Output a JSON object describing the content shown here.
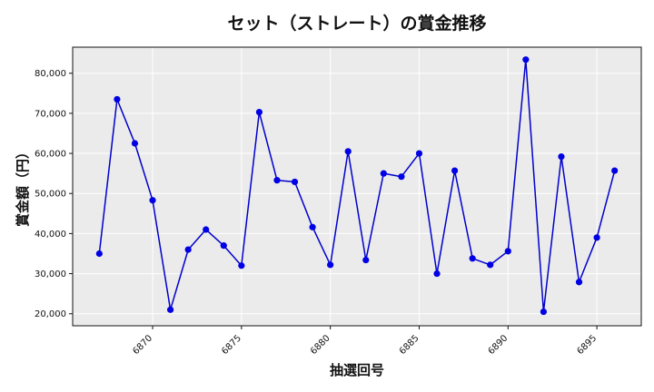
{
  "chart_data": {
    "type": "line",
    "title": "セット（ストレート）の賞金推移",
    "xlabel": "抽選回号",
    "ylabel": "賞金額（円）",
    "xlim": [
      6865.5,
      6897.5
    ],
    "ylim": [
      17000,
      86500
    ],
    "x_ticks": [
      6870,
      6875,
      6880,
      6885,
      6890,
      6895
    ],
    "y_ticks": [
      20000,
      30000,
      40000,
      50000,
      60000,
      70000,
      80000
    ],
    "y_tick_labels": [
      "20,000",
      "30,000",
      "40,000",
      "50,000",
      "60,000",
      "70,000",
      "80,000"
    ],
    "grid": true,
    "colors": {
      "line": "#0000cc",
      "marker": "#0000e6",
      "plot_bg": "#ebebeb",
      "grid": "#ffffff"
    },
    "series": [
      {
        "x": [
          6867,
          6868,
          6869,
          6870,
          6871,
          6872,
          6873,
          6874,
          6875,
          6876,
          6877,
          6878,
          6879,
          6880,
          6881,
          6882,
          6883,
          6884,
          6885,
          6886,
          6887,
          6888,
          6889,
          6890,
          6891,
          6892,
          6893,
          6894,
          6895,
          6896
        ],
        "values": [
          35000,
          73500,
          62500,
          48300,
          21000,
          36000,
          41000,
          37000,
          32000,
          70300,
          53300,
          52900,
          41600,
          32200,
          60500,
          33400,
          55000,
          54200,
          60000,
          30000,
          55700,
          33800,
          32200,
          35600,
          83400,
          20500,
          59200,
          27900,
          39000,
          55700
        ]
      }
    ]
  }
}
